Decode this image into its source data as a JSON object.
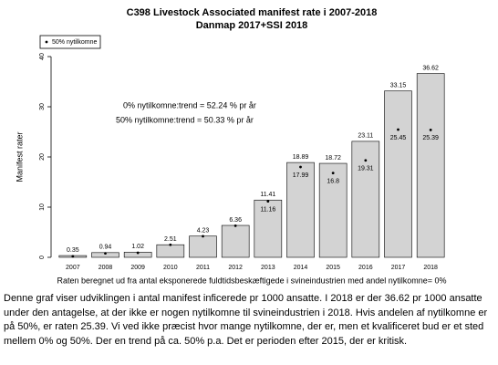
{
  "chart_data": {
    "type": "bar",
    "title": "C398 Livestock Associated manifest rate i 2007-2018",
    "subtitle": "Danmap 2017+SSI  2018",
    "y_label": "Manifest rater",
    "x_label": "Raten beregnet ud fra antal eksponerede fuldtidsbeskæftigede i svineindustrien med andel nytilkomne= 0%",
    "annotations": [
      "0% nytilkomne:trend = 52.24 % pr år",
      "50% nytilkomne:trend = 50.33 % pr år"
    ],
    "categories": [
      "2007",
      "2008",
      "2009",
      "2010",
      "2011",
      "2012",
      "2013",
      "2014",
      "2015",
      "2016",
      "2017",
      "2018"
    ],
    "values": [
      0.35,
      0.94,
      1.02,
      2.51,
      4.23,
      6.36,
      11.41,
      18.89,
      18.72,
      23.11,
      33.15,
      36.62
    ],
    "color": "#d3d3d3",
    "series": [
      {
        "name": "50% nytilkomne",
        "color": "#000000",
        "values": [
          0.2,
          0.8,
          0.9,
          2.5,
          4.2,
          6.3,
          11.16,
          17.99,
          16.8,
          19.31,
          25.45,
          25.39
        ],
        "value_labels": [
          null,
          null,
          null,
          null,
          null,
          null,
          "11.16",
          "17.99",
          "16.8",
          "19.31",
          "25.45",
          "25.39"
        ]
      }
    ],
    "legend": "top-left",
    "ylim": [
      0,
      40
    ],
    "yticks": [
      0,
      10,
      20,
      30,
      40
    ]
  },
  "paragraph": "Denne graf viser udviklingen i antal manifest inficerede pr 1000 ansatte. I 2018 er der 36.62 pr 1000 ansatte under den antagelse, at der ikke er nogen nytilkomne til svineindustrien i 2018. Hvis andelen af nytilkomne er på 50%, er raten 25.39. Vi ved ikke præcist hvor mange nytilkomne, der er, men et kvalificeret bud er et sted mellem 0% og 50%. Der en trend på ca. 50% p.a. Det er perioden efter 2015, der er kritisk."
}
